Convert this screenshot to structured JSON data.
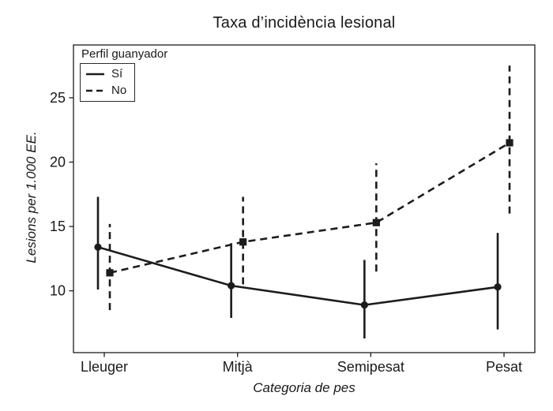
{
  "figure_background": "#ffffff",
  "ink_color": "#1c1c1c",
  "text_color": "#1a1a1a",
  "chart_data": {
    "type": "line",
    "title": "Taxa d’incidència lesional",
    "xlabel": "Categoria de pes",
    "ylabel": "Lesions per 1.000 EE.",
    "categories": [
      "Lleuger",
      "Mitjà",
      "Semipesat",
      "Pesat"
    ],
    "y_ticks": [
      10,
      15,
      20,
      25
    ],
    "ylim": [
      5.2,
      29.1
    ],
    "grid": false,
    "legend_title": "Perfil guanyador",
    "legend_position": "top-left",
    "error_bars": true,
    "series": [
      {
        "name": "Sí",
        "line_style": "solid",
        "marker": "circle",
        "x_offset": -8,
        "values": [
          13.4,
          10.4,
          8.9,
          10.3
        ],
        "ci_low": [
          10.1,
          7.9,
          6.3,
          7.0
        ],
        "ci_high": [
          17.3,
          13.7,
          12.4,
          14.5
        ]
      },
      {
        "name": "No",
        "line_style": "dashed",
        "marker": "square",
        "x_offset": 7,
        "values": [
          11.4,
          13.8,
          15.3,
          21.5
        ],
        "ci_low": [
          8.5,
          10.5,
          11.5,
          16.0
        ],
        "ci_high": [
          15.2,
          17.3,
          19.9,
          27.5
        ]
      }
    ]
  }
}
